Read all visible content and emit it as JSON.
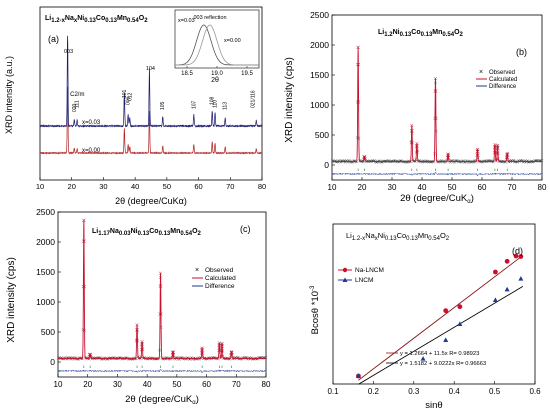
{
  "chart_data": [
    {
      "panel": "(a)",
      "type": "line",
      "title": "Li1.2-xNaxNi0.13Co0.13Mn0.54O2",
      "ylabel": "XRD intensity (a.u.)",
      "xlabel": "2θ (degree/CuKα)",
      "xlim": [
        10,
        80
      ],
      "x_ticks": [
        10,
        20,
        30,
        40,
        50,
        60,
        70,
        80
      ],
      "series": [
        {
          "name": "x=0.03",
          "color": "#1a1a6e",
          "offset": 1.0
        },
        {
          "name": "x=0.00",
          "color": "#b22222",
          "offset": 0.0
        }
      ],
      "peaks": [
        {
          "x": 18.7,
          "h": 0.95
        },
        {
          "x": 20.8,
          "h": 0.07
        },
        {
          "x": 21.7,
          "h": 0.06
        },
        {
          "x": 36.6,
          "h": 0.35
        },
        {
          "x": 37.8,
          "h": 0.12
        },
        {
          "x": 38.3,
          "h": 0.09
        },
        {
          "x": 44.5,
          "h": 0.6
        },
        {
          "x": 48.7,
          "h": 0.1
        },
        {
          "x": 58.5,
          "h": 0.12
        },
        {
          "x": 64.3,
          "h": 0.16
        },
        {
          "x": 65.2,
          "h": 0.14
        },
        {
          "x": 68.4,
          "h": 0.09
        },
        {
          "x": 78.2,
          "h": 0.06
        }
      ],
      "peak_labels": [
        "003",
        "020",
        "111",
        "C2/m",
        "101",
        "006",
        "012",
        "104",
        "105",
        "107",
        "108",
        "110",
        "113",
        "021/116"
      ],
      "inset": {
        "label": "003 reflection",
        "xlabel": "2θ",
        "x_ticks": [
          18.5,
          19.0,
          19.5
        ],
        "xlim": [
          18.3,
          19.7
        ],
        "curves": [
          {
            "name": "x=0.03",
            "center": 18.78,
            "width": 0.12,
            "color": "#555555"
          },
          {
            "name": "x=0.00",
            "center": 18.88,
            "width": 0.12,
            "color": "#999999"
          }
        ]
      }
    },
    {
      "panel": "(b)",
      "type": "line",
      "title": "Li1.2Ni0.13Co0.13Mn0.54O2",
      "ylabel": "XRD intensity (cps)",
      "xlabel": "2θ (degree/CuKα)",
      "xlim": [
        10,
        80
      ],
      "ylim": [
        -250,
        2500
      ],
      "x_ticks": [
        10,
        20,
        30,
        40,
        50,
        60,
        70,
        80
      ],
      "y_ticks": [
        0,
        500,
        1000,
        1500,
        2000,
        2500
      ],
      "legend": [
        "Observed",
        "Calculated",
        "Difference"
      ],
      "peaks": [
        {
          "x": 18.7,
          "y": 1900
        },
        {
          "x": 20.8,
          "y": 80
        },
        {
          "x": 36.6,
          "y": 600
        },
        {
          "x": 38.3,
          "y": 300
        },
        {
          "x": 44.5,
          "y": 1380
        },
        {
          "x": 48.7,
          "y": 120
        },
        {
          "x": 58.5,
          "y": 200
        },
        {
          "x": 64.3,
          "y": 280
        },
        {
          "x": 65.2,
          "y": 260
        },
        {
          "x": 68.4,
          "y": 130
        }
      ],
      "difference_offset": -150
    },
    {
      "panel": "(c)",
      "type": "line",
      "title": "Li1.17Na0.03Ni0.13Co0.13Mn0.54O2",
      "ylabel": "XRD intensity (cps)",
      "xlabel": "2θ (degree/CuKα)",
      "xlim": [
        10,
        80
      ],
      "ylim": [
        -250,
        2500
      ],
      "x_ticks": [
        10,
        20,
        30,
        40,
        50,
        60,
        70,
        80
      ],
      "y_ticks": [
        0,
        500,
        1000,
        1500,
        2000,
        2500
      ],
      "legend": [
        "Observed",
        "Calculated",
        "Difference"
      ],
      "peaks": [
        {
          "x": 18.7,
          "y": 2300
        },
        {
          "x": 20.8,
          "y": 70
        },
        {
          "x": 36.6,
          "y": 560
        },
        {
          "x": 38.3,
          "y": 280
        },
        {
          "x": 44.5,
          "y": 1420
        },
        {
          "x": 48.7,
          "y": 110
        },
        {
          "x": 58.5,
          "y": 170
        },
        {
          "x": 64.3,
          "y": 260
        },
        {
          "x": 65.2,
          "y": 240
        },
        {
          "x": 68.4,
          "y": 110
        }
      ],
      "difference_offset": -150
    },
    {
      "panel": "(d)",
      "type": "scatter",
      "title": "Li1.2-xNaxNi0.13Co0.13Mn0.54O2",
      "ylabel": "Bcosθ *10^-3",
      "xlabel": "sinθ",
      "xlim": [
        0.1,
        0.6
      ],
      "ylim": [
        3,
        9
      ],
      "x_ticks": [
        0.1,
        0.2,
        0.3,
        0.4,
        0.5,
        0.6
      ],
      "series": [
        {
          "name": "Na-LNCM",
          "color": "#c8102e",
          "marker": "circle",
          "x": [
            0.163,
            0.379,
            0.414,
            0.502,
            0.531,
            0.553,
            0.565
          ],
          "y": [
            3.3,
            5.75,
            5.9,
            7.2,
            7.6,
            7.8,
            7.78
          ],
          "fit": "y = 1.2664 + 11.5x  R= 0.98923",
          "fit_coeffs": [
            1.2664,
            11.5
          ]
        },
        {
          "name": "LNCM",
          "color": "#1f3a93",
          "marker": "triangle",
          "x": [
            0.163,
            0.323,
            0.379,
            0.414,
            0.502,
            0.531,
            0.565
          ],
          "y": [
            3.3,
            3.95,
            4.65,
            5.25,
            6.15,
            6.55,
            6.95
          ],
          "fit": "y = 1.5182 + 9.0222x  R= 0.96663",
          "fit_coeffs": [
            1.5182,
            9.0222
          ]
        }
      ]
    }
  ]
}
